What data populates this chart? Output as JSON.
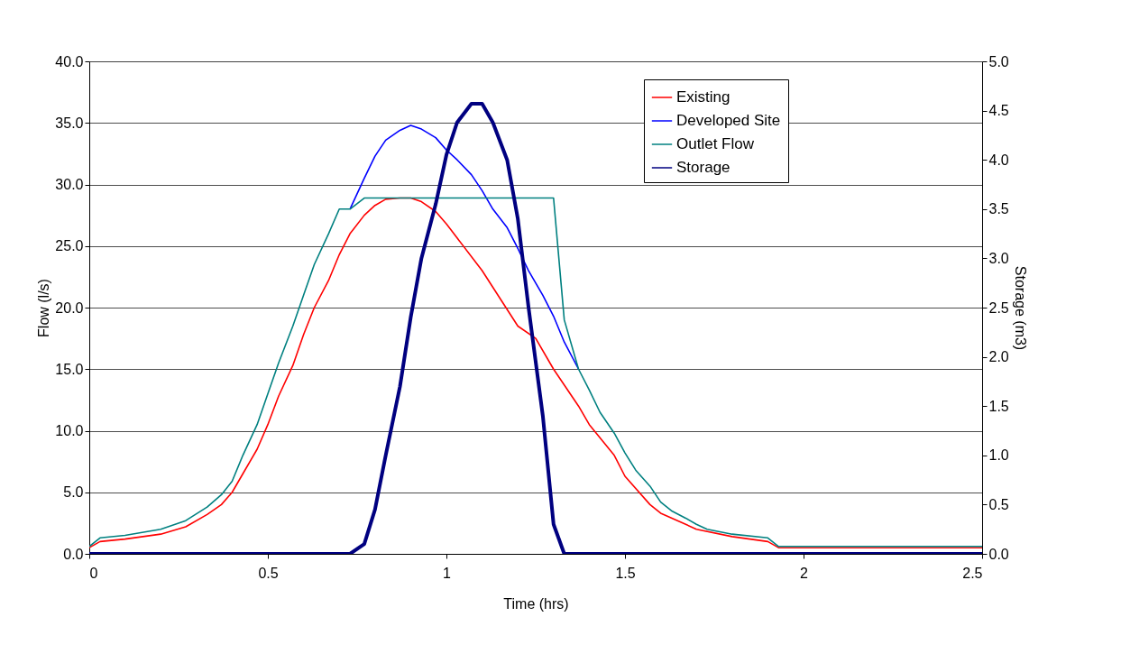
{
  "chart_data": {
    "type": "line",
    "xlabel": "Time (hrs)",
    "ylabel": "Flow (l/s)",
    "y2label": "Storage (m3)",
    "xlim": [
      0,
      2.5
    ],
    "xticks": [
      {
        "value": 0,
        "label": "0"
      },
      0.5,
      {
        "value": 1,
        "label": "1"
      },
      1.5,
      {
        "value": 2,
        "label": "2"
      },
      2.5
    ],
    "ylim": [
      0,
      40
    ],
    "yticks": [
      {
        "value": 0,
        "label": "0.0"
      },
      {
        "value": 5,
        "label": "5.0"
      },
      {
        "value": 10,
        "label": "10.0"
      },
      {
        "value": 15,
        "label": "15.0"
      },
      {
        "value": 20,
        "label": "20.0"
      },
      {
        "value": 25,
        "label": "25.0"
      },
      {
        "value": 30,
        "label": "30.0"
      },
      {
        "value": 35,
        "label": "35.0"
      },
      {
        "value": 40,
        "label": "40.0"
      }
    ],
    "y2lim": [
      0,
      5
    ],
    "y2ticks": [
      {
        "value": 0,
        "label": "0.0"
      },
      {
        "value": 0.5,
        "label": "0.5"
      },
      {
        "value": 1,
        "label": "1.0"
      },
      {
        "value": 1.5,
        "label": "1.5"
      },
      {
        "value": 2,
        "label": "2.0"
      },
      {
        "value": 2.5,
        "label": "2.5"
      },
      {
        "value": 3,
        "label": "3.0"
      },
      {
        "value": 3.5,
        "label": "3.5"
      },
      {
        "value": 4,
        "label": "4.0"
      },
      {
        "value": 4.5,
        "label": "4.5"
      },
      {
        "value": 5,
        "label": "5.0"
      }
    ],
    "grid": "y",
    "legend": "top right",
    "marker": "none",
    "line_style": "solid",
    "series": [
      {
        "name": "Existing",
        "color": "#ff0000",
        "x": [
          0,
          0.03,
          0.1,
          0.2,
          0.27,
          0.33,
          0.37,
          0.4,
          0.43,
          0.47,
          0.5,
          0.53,
          0.57,
          0.6,
          0.63,
          0.67,
          0.7,
          0.73,
          0.77,
          0.8,
          0.83,
          0.87,
          0.9,
          0.93,
          0.97,
          1.0,
          1.1,
          1.2,
          1.25,
          1.3,
          1.37,
          1.4,
          1.47,
          1.5,
          1.57,
          1.6,
          1.67,
          1.7,
          1.8,
          1.9,
          1.93,
          2.5
        ],
        "values": [
          0.5,
          1.0,
          1.2,
          1.6,
          2.2,
          3.2,
          4.0,
          5.0,
          6.5,
          8.5,
          10.5,
          12.8,
          15.3,
          17.8,
          20,
          22.2,
          24.3,
          26,
          27.5,
          28.3,
          28.8,
          28.9,
          28.9,
          28.6,
          27.8,
          26.8,
          23,
          18.5,
          17.5,
          15,
          12,
          10.5,
          8,
          6.3,
          4,
          3.3,
          2.4,
          2.0,
          1.4,
          1.0,
          0.5,
          0.5
        ]
      },
      {
        "name": "Developed Site",
        "color": "#0000ff",
        "x": [
          0.73,
          0.77,
          0.8,
          0.83,
          0.87,
          0.9,
          0.93,
          0.97,
          1.0,
          1.03,
          1.07,
          1.1,
          1.13,
          1.17,
          1.2,
          1.23,
          1.27,
          1.3,
          1.33,
          1.37
        ],
        "values": [
          28,
          30.5,
          32.3,
          33.6,
          34.4,
          34.8,
          34.5,
          33.8,
          32.8,
          32,
          30.8,
          29.5,
          28,
          26.5,
          24.8,
          23,
          21,
          19.3,
          17.2,
          15
        ]
      },
      {
        "name": "Outlet Flow",
        "color": "#008080",
        "x": [
          0,
          0.03,
          0.1,
          0.2,
          0.27,
          0.33,
          0.37,
          0.4,
          0.43,
          0.47,
          0.5,
          0.53,
          0.57,
          0.6,
          0.63,
          0.67,
          0.7,
          0.73,
          0.77,
          1.3,
          1.33,
          1.37,
          1.4,
          1.43,
          1.47,
          1.5,
          1.53,
          1.57,
          1.6,
          1.63,
          1.67,
          1.7,
          1.73,
          1.8,
          1.9,
          1.93,
          2.5
        ],
        "values": [
          0.6,
          1.3,
          1.5,
          2.0,
          2.7,
          3.8,
          4.8,
          5.9,
          8,
          10.5,
          13,
          15.5,
          18.5,
          21,
          23.5,
          26,
          28,
          28,
          28.9,
          28.9,
          19,
          15,
          13.3,
          11.5,
          9.8,
          8.2,
          6.8,
          5.5,
          4.2,
          3.5,
          2.9,
          2.4,
          2.0,
          1.6,
          1.3,
          0.6,
          0.6
        ]
      },
      {
        "name": "Storage",
        "color": "#000080",
        "axis": "y2",
        "x": [
          0,
          0.73,
          0.77,
          0.8,
          0.83,
          0.87,
          0.9,
          0.93,
          0.97,
          1.0,
          1.03,
          1.07,
          1.1,
          1.13,
          1.17,
          1.2,
          1.23,
          1.27,
          1.3,
          1.33,
          2.5
        ],
        "values": [
          0,
          0,
          0.1,
          0.45,
          1.0,
          1.7,
          2.4,
          3.0,
          3.55,
          4.05,
          4.38,
          4.57,
          4.57,
          4.38,
          4.0,
          3.4,
          2.5,
          1.4,
          0.3,
          0,
          0
        ]
      }
    ]
  }
}
